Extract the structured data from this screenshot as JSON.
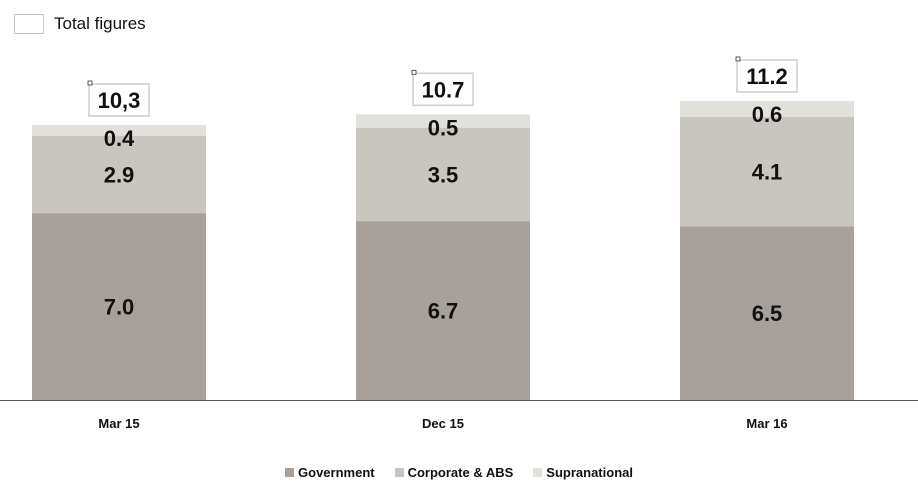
{
  "top_legend": {
    "label": "Total figures"
  },
  "chart_data": {
    "type": "bar",
    "stacked": true,
    "categories": [
      "Mar 15",
      "Dec 15",
      "Mar 16"
    ],
    "series": [
      {
        "name": "Government",
        "values": [
          7.0,
          6.7,
          6.5
        ],
        "labels": [
          "7.0",
          "6.7",
          "6.5"
        ],
        "color": "#a8a19b"
      },
      {
        "name": "Corporate & ABS",
        "values": [
          2.9,
          3.5,
          4.1
        ],
        "labels": [
          "2.9",
          "3.5",
          "4.1"
        ],
        "color": "#c9c5bf"
      },
      {
        "name": "Supranational",
        "values": [
          0.4,
          0.5,
          0.6
        ],
        "labels": [
          "0.4",
          "0.5",
          "0.6"
        ],
        "color": "#e2e0db"
      }
    ],
    "totals": [
      "10,3",
      "10.7",
      "11.2"
    ],
    "ylim": [
      0,
      12
    ],
    "grid": false,
    "legend_position": "bottom"
  }
}
